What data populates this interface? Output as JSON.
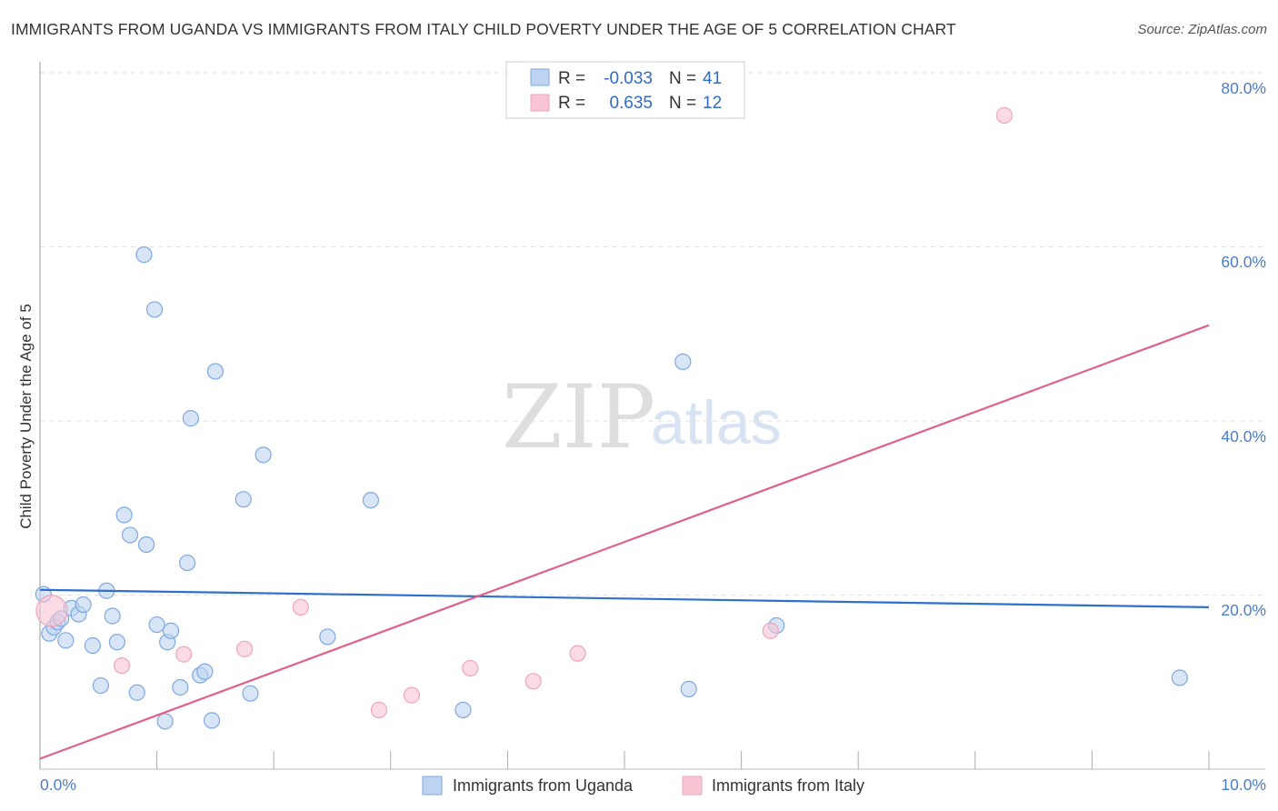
{
  "title": "IMMIGRANTS FROM UGANDA VS IMMIGRANTS FROM ITALY CHILD POVERTY UNDER THE AGE OF 5 CORRELATION CHART",
  "source": "Source: ZipAtlas.com",
  "watermark": {
    "zip": "ZIP",
    "atlas": "atlas"
  },
  "legend_top": {
    "rows": [
      {
        "r_label": "R =",
        "r_value": "-0.033",
        "n_label": "N =",
        "n_value": "41"
      },
      {
        "r_label": "R =",
        "r_value": "0.635",
        "n_label": "N =",
        "n_value": "12"
      }
    ]
  },
  "chart_data": {
    "type": "scatter",
    "title": "IMMIGRANTS FROM UGANDA VS IMMIGRANTS FROM ITALY CHILD POVERTY UNDER THE AGE OF 5 CORRELATION CHART",
    "xlabel": "",
    "ylabel": "Child Poverty Under the Age of 5",
    "xlim": [
      0,
      10
    ],
    "ylim": [
      0,
      80
    ],
    "x_tick_labels": [
      "0.0%",
      "10.0%"
    ],
    "y_tick_labels": [
      "20.0%",
      "40.0%",
      "60.0%",
      "80.0%"
    ],
    "y_ticks": [
      20,
      40,
      60,
      80
    ],
    "series": [
      {
        "name": "Immigrants from Uganda",
        "color": "#7fa8e0",
        "fill": "#bcd3f1",
        "line_color": "#2f6fce",
        "r": "-0.033",
        "n": "41",
        "points": [
          [
            0.03,
            20.1
          ],
          [
            0.08,
            15.6
          ],
          [
            0.12,
            16.3
          ],
          [
            0.15,
            16.9
          ],
          [
            0.18,
            17.3
          ],
          [
            0.22,
            14.8
          ],
          [
            0.27,
            18.5
          ],
          [
            0.33,
            17.8
          ],
          [
            0.37,
            18.9
          ],
          [
            0.45,
            14.2
          ],
          [
            0.52,
            9.6
          ],
          [
            0.57,
            20.5
          ],
          [
            0.62,
            17.6
          ],
          [
            0.66,
            14.6
          ],
          [
            0.72,
            29.2
          ],
          [
            0.77,
            26.9
          ],
          [
            0.83,
            8.8
          ],
          [
            0.89,
            59.1
          ],
          [
            0.91,
            25.8
          ],
          [
            0.98,
            52.8
          ],
          [
            1.0,
            16.6
          ],
          [
            1.07,
            5.5
          ],
          [
            1.09,
            14.6
          ],
          [
            1.12,
            15.9
          ],
          [
            1.2,
            9.4
          ],
          [
            1.26,
            23.7
          ],
          [
            1.29,
            40.3
          ],
          [
            1.37,
            10.8
          ],
          [
            1.41,
            11.2
          ],
          [
            1.47,
            5.6
          ],
          [
            1.5,
            45.7
          ],
          [
            1.74,
            31.0
          ],
          [
            1.8,
            8.7
          ],
          [
            1.91,
            36.1
          ],
          [
            2.46,
            15.2
          ],
          [
            2.83,
            30.9
          ],
          [
            3.62,
            6.8
          ],
          [
            5.5,
            46.8
          ],
          [
            5.55,
            9.2
          ],
          [
            6.3,
            16.5
          ],
          [
            9.75,
            10.5
          ]
        ],
        "trend": [
          [
            0,
            20.6
          ],
          [
            10,
            18.6
          ]
        ]
      },
      {
        "name": "Immigrants from Italy",
        "color": "#f0a4bb",
        "fill": "#f8c5d4",
        "line_color": "#e0608a",
        "r": "0.635",
        "n": "12",
        "points": [
          [
            0.1,
            18.2
          ],
          [
            0.7,
            11.9
          ],
          [
            1.23,
            13.2
          ],
          [
            1.75,
            13.8
          ],
          [
            2.23,
            18.6
          ],
          [
            2.9,
            6.8
          ],
          [
            3.18,
            8.5
          ],
          [
            3.68,
            11.6
          ],
          [
            4.22,
            10.1
          ],
          [
            4.6,
            13.3
          ],
          [
            6.25,
            15.9
          ],
          [
            8.25,
            75.1
          ]
        ],
        "trend": [
          [
            0,
            1.2
          ],
          [
            10,
            51.0
          ]
        ]
      }
    ],
    "legend_bottom": [
      "Immigrants from Uganda",
      "Immigrants from Italy"
    ]
  }
}
